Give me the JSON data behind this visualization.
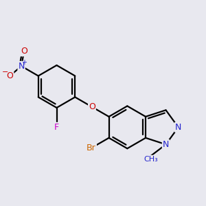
{
  "bg_color": "#e8e8ef",
  "bond_color": "#000000",
  "bond_width": 1.6,
  "atom_colors": {
    "N_blue": "#2222cc",
    "O_red": "#cc0000",
    "F_purple": "#cc00cc",
    "Br_orange": "#cc6600"
  },
  "figsize": [
    3.0,
    3.0
  ],
  "dpi": 100,
  "xlim": [
    0,
    10
  ],
  "ylim": [
    0,
    10
  ]
}
